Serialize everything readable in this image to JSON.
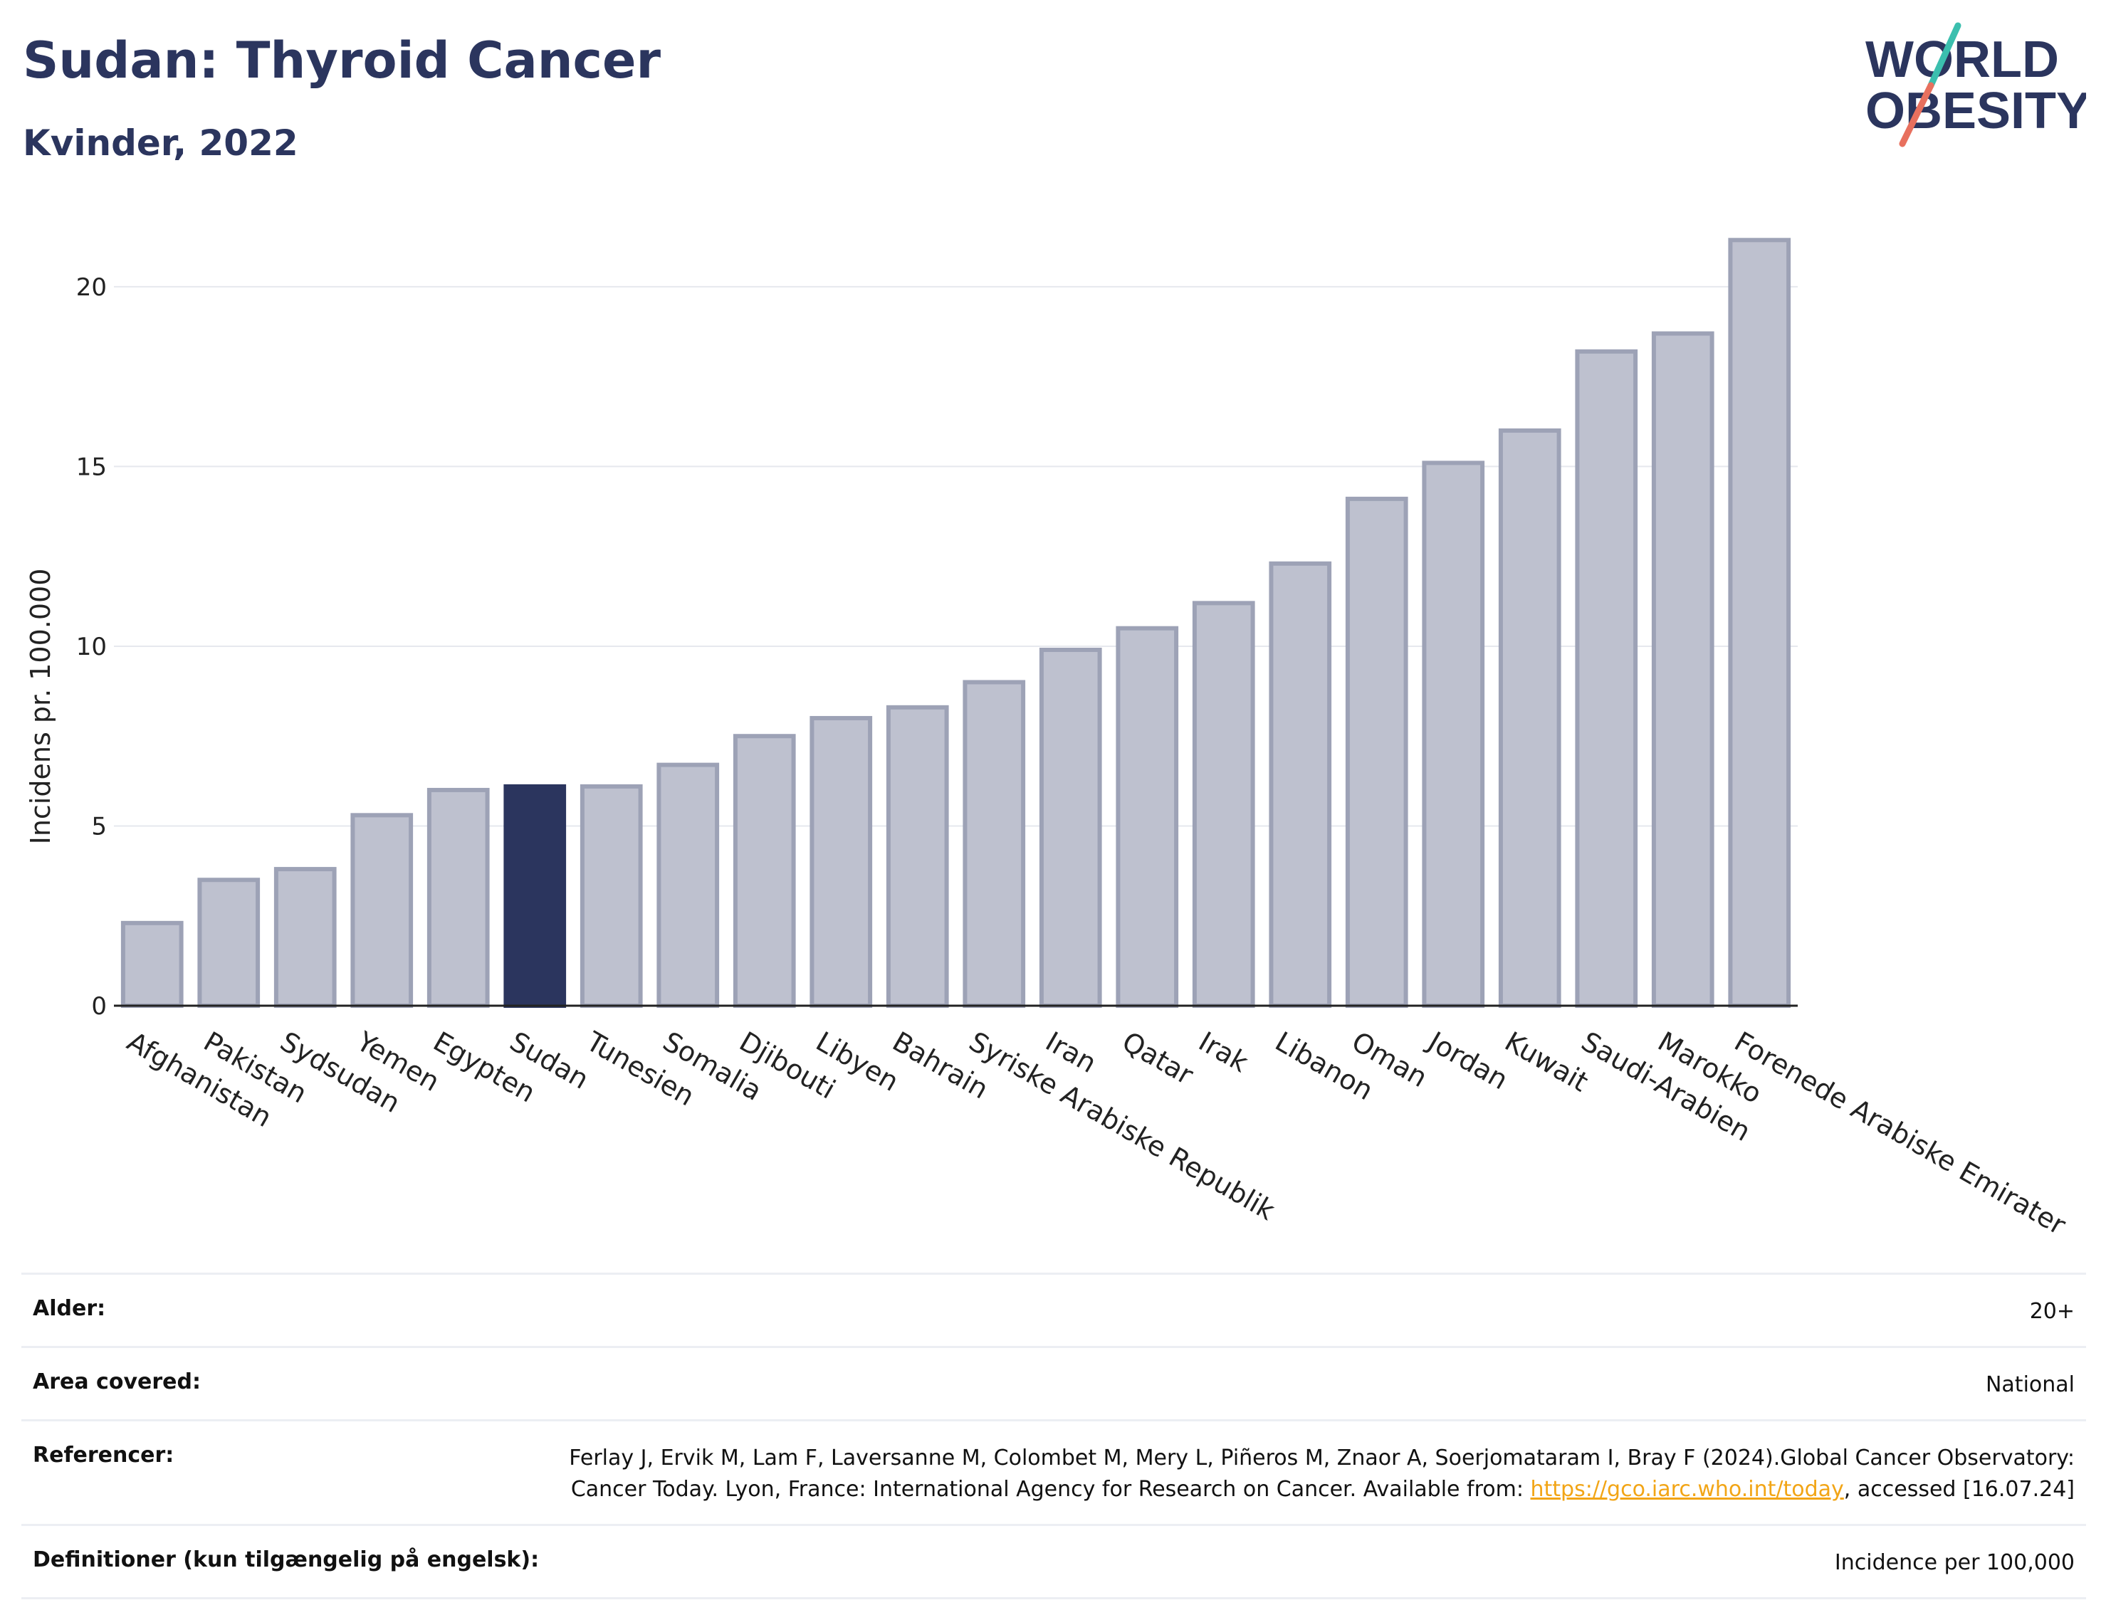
{
  "header": {
    "title": "Sudan: Thyroid Cancer",
    "subtitle": "Kvinder, 2022"
  },
  "logo": {
    "line1": "WORLD",
    "line2": "OBESITY",
    "accent_colors": [
      "#3bbfae",
      "#e8705e"
    ],
    "text_color": "#2b355e"
  },
  "chart_data": {
    "type": "bar",
    "ylabel": "Incidens pr. 100.000",
    "xlabel": "",
    "ylim": [
      0,
      21.8
    ],
    "yticks": [
      0,
      5,
      10,
      15,
      20
    ],
    "grid": true,
    "highlight_category": "Sudan",
    "colors": {
      "bar": "#bec1cf",
      "bar_edge": "#9da2b6",
      "highlight": "#2b355e"
    },
    "categories": [
      "Afghanistan",
      "Pakistan",
      "Sydsudan",
      "Yemen",
      "Egypten",
      "Sudan",
      "Tunesien",
      "Somalia",
      "Djibouti",
      "Libyen",
      "Bahrain",
      "Syriske Arabiske Republik",
      "Iran",
      "Qatar",
      "Irak",
      "Libanon",
      "Oman",
      "Jordan",
      "Kuwait",
      "Saudi-Arabien",
      "Marokko",
      "Forenede Arabiske Emirater"
    ],
    "values": [
      2.3,
      3.5,
      3.8,
      5.3,
      6.0,
      6.1,
      6.1,
      6.7,
      7.5,
      8.0,
      8.3,
      9.0,
      9.9,
      10.5,
      11.2,
      12.3,
      14.1,
      15.1,
      16.0,
      18.2,
      18.7,
      21.3
    ]
  },
  "info_table": {
    "age_label": "Alder:",
    "age_value": "20+",
    "area_label": "Area covered:",
    "area_value": "National",
    "ref_label": "Referencer:",
    "ref_text_1": "Ferlay J, Ervik M, Lam F, Laversanne M, Colombet M, Mery L, Piñeros M, Znaor A, Soerjomataram I, Bray F (2024).Global Cancer Observatory: Cancer Today. Lyon, France: International Agency for Research on Cancer. Available from: ",
    "ref_link": "https://gco.iarc.who.int/today",
    "ref_text_2": ", accessed [16.07.24]",
    "def_label": "Definitioner (kun tilgængelig på engelsk):",
    "def_value": "Incidence per 100,000"
  }
}
